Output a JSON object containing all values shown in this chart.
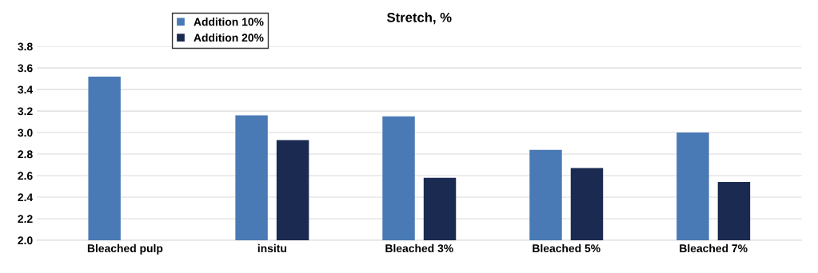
{
  "chart_data": {
    "type": "bar",
    "title": "Stretch, %",
    "categories": [
      "Bleached pulp",
      "insitu",
      "Bleached 3%",
      "Bleached 5%",
      "Bleached 7%"
    ],
    "series": [
      {
        "name": "Addition 10%",
        "color": "#4a7ab5",
        "values": [
          3.52,
          3.16,
          3.15,
          2.84,
          3.0
        ]
      },
      {
        "name": "Addition 20%",
        "color": "#1b2a50",
        "values": [
          null,
          2.93,
          2.58,
          2.67,
          2.54
        ]
      }
    ],
    "ylim": [
      2.0,
      3.8
    ],
    "yticks": [
      {
        "value": 2.0,
        "label": "2.0"
      },
      {
        "value": 2.2,
        "label": "2.2"
      },
      {
        "value": 2.4,
        "label": "2.4"
      },
      {
        "value": 2.6,
        "label": "2.6"
      },
      {
        "value": 2.8,
        "label": "2.8"
      },
      {
        "value": 3.0,
        "label": "3.0"
      },
      {
        "value": 3.2,
        "label": "3.2"
      },
      {
        "value": 3.4,
        "label": "3.4"
      },
      {
        "value": 3.6,
        "label": "3.6"
      },
      {
        "value": 3.8,
        "label": "3.8"
      }
    ],
    "grid": "y",
    "legend": "top left"
  }
}
